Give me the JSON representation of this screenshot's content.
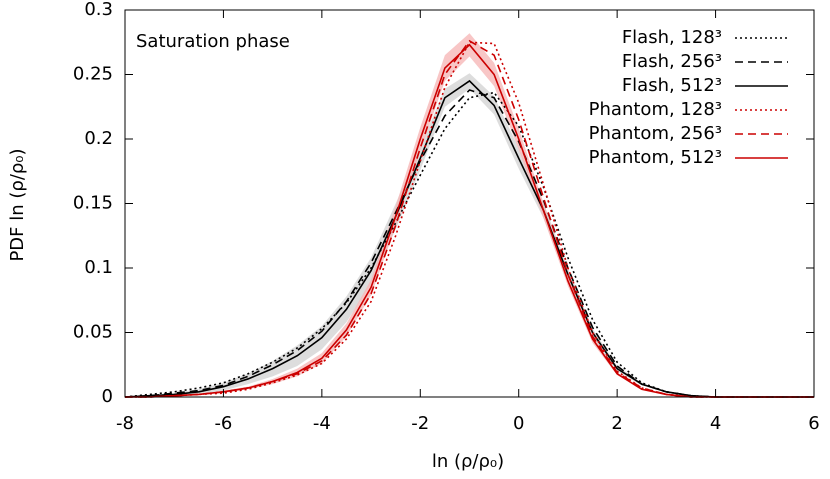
{
  "chart_data": {
    "type": "line",
    "annotation": "Saturation phase",
    "xlabel": "ln (ρ/ρ₀)",
    "ylabel": "PDF ln (ρ/ρ₀)",
    "x": [
      -8,
      -7.5,
      -7,
      -6.5,
      -6,
      -5.5,
      -5,
      -4.5,
      -4,
      -3.5,
      -3,
      -2.5,
      -2,
      -1.5,
      -1,
      -0.5,
      0,
      0.5,
      1,
      1.5,
      2,
      2.5,
      3,
      3.5,
      4,
      4.5,
      5,
      5.5,
      6
    ],
    "xlim": [
      -8,
      6
    ],
    "xticks": [
      -8,
      -6,
      -4,
      -2,
      0,
      2,
      4,
      6
    ],
    "ylim": [
      0,
      0.3
    ],
    "yticks": [
      0,
      0.05,
      0.1,
      0.15,
      0.2,
      0.25,
      0.3
    ],
    "legend": "upper right",
    "series": [
      {
        "name": "Flash, 128³",
        "color": "#000000",
        "dash": "dotted",
        "values": [
          0,
          0.002,
          0.004,
          0.007,
          0.011,
          0.018,
          0.027,
          0.038,
          0.053,
          0.073,
          0.1,
          0.135,
          0.172,
          0.208,
          0.232,
          0.236,
          0.21,
          0.163,
          0.108,
          0.06,
          0.027,
          0.011,
          0.004,
          0.001,
          0,
          0,
          0,
          0,
          0
        ]
      },
      {
        "name": "Flash, 256³",
        "color": "#000000",
        "dash": "dashed",
        "values": [
          0,
          0.001,
          0.003,
          0.005,
          0.009,
          0.016,
          0.025,
          0.036,
          0.051,
          0.074,
          0.104,
          0.143,
          0.183,
          0.218,
          0.238,
          0.232,
          0.198,
          0.153,
          0.1,
          0.054,
          0.024,
          0.01,
          0.004,
          0.001,
          0,
          0,
          0,
          0,
          0
        ]
      },
      {
        "name": "Flash, 512³",
        "color": "#000000",
        "dash": "solid",
        "band_color": "#d4d4d4",
        "values": [
          0,
          0.001,
          0.002,
          0.004,
          0.008,
          0.014,
          0.022,
          0.032,
          0.046,
          0.068,
          0.098,
          0.14,
          0.185,
          0.232,
          0.245,
          0.226,
          0.185,
          0.145,
          0.095,
          0.05,
          0.022,
          0.01,
          0.004,
          0.001,
          0,
          0,
          0,
          0,
          0
        ],
        "errors": [
          0,
          0,
          0.001,
          0.002,
          0.003,
          0.004,
          0.006,
          0.008,
          0.009,
          0.01,
          0.01,
          0.01,
          0.009,
          0.007,
          0.006,
          0.007,
          0.008,
          0.006,
          0.005,
          0.003,
          0.002,
          0.001,
          0,
          0,
          0,
          0,
          0,
          0,
          0
        ]
      },
      {
        "name": "Phantom, 128³",
        "color": "#cc0000",
        "dash": "dotted",
        "values": [
          0,
          0,
          0.001,
          0.002,
          0.003,
          0.006,
          0.011,
          0.017,
          0.026,
          0.045,
          0.074,
          0.125,
          0.183,
          0.24,
          0.275,
          0.274,
          0.228,
          0.165,
          0.1,
          0.05,
          0.02,
          0.007,
          0.002,
          0,
          0,
          0,
          0,
          0,
          0
        ]
      },
      {
        "name": "Phantom, 256³",
        "color": "#cc0000",
        "dash": "dashed",
        "values": [
          0,
          0,
          0.001,
          0.002,
          0.004,
          0.007,
          0.012,
          0.018,
          0.028,
          0.048,
          0.08,
          0.133,
          0.193,
          0.25,
          0.276,
          0.265,
          0.215,
          0.155,
          0.095,
          0.047,
          0.019,
          0.007,
          0.002,
          0,
          0,
          0,
          0,
          0,
          0
        ]
      },
      {
        "name": "Phantom, 512³",
        "color": "#cc0000",
        "dash": "solid",
        "band_color": "#f6b8b8",
        "values": [
          0,
          0,
          0.001,
          0.002,
          0.004,
          0.007,
          0.012,
          0.019,
          0.03,
          0.052,
          0.085,
          0.14,
          0.2,
          0.255,
          0.273,
          0.25,
          0.2,
          0.145,
          0.09,
          0.045,
          0.018,
          0.006,
          0.002,
          0,
          0,
          0,
          0,
          0,
          0
        ],
        "errors": [
          0,
          0,
          0,
          0,
          0.001,
          0.001,
          0.002,
          0.003,
          0.004,
          0.005,
          0.006,
          0.008,
          0.009,
          0.01,
          0.009,
          0.009,
          0.008,
          0.006,
          0.004,
          0.003,
          0.001,
          0,
          0,
          0,
          0,
          0,
          0,
          0,
          0
        ]
      }
    ]
  }
}
